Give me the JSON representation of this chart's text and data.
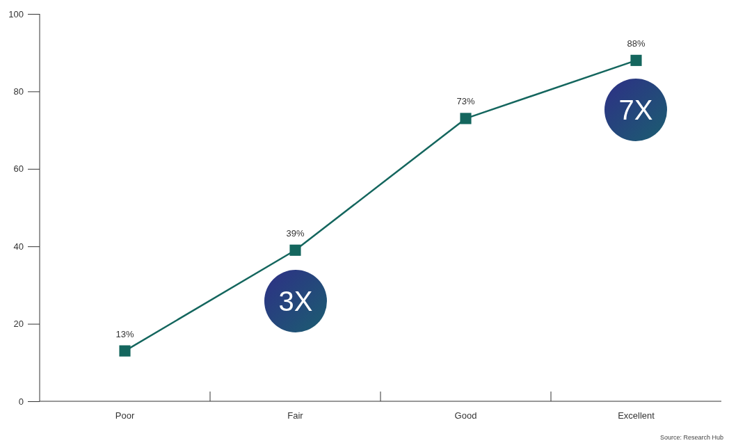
{
  "chart_data": {
    "type": "line",
    "categories": [
      "Poor",
      "Fair",
      "Good",
      "Excellent"
    ],
    "values": [
      13,
      39,
      73,
      88
    ],
    "value_labels": [
      "13%",
      "39%",
      "73%",
      "88%"
    ],
    "color": "#14665e",
    "marker": "square",
    "line_style": "solid",
    "ylim": [
      0,
      100
    ],
    "yticks": [
      0,
      20,
      40,
      60,
      80,
      100
    ],
    "grid": false,
    "annotations": [
      "3X",
      "7X",
      "Source: Research Hub"
    ]
  }
}
